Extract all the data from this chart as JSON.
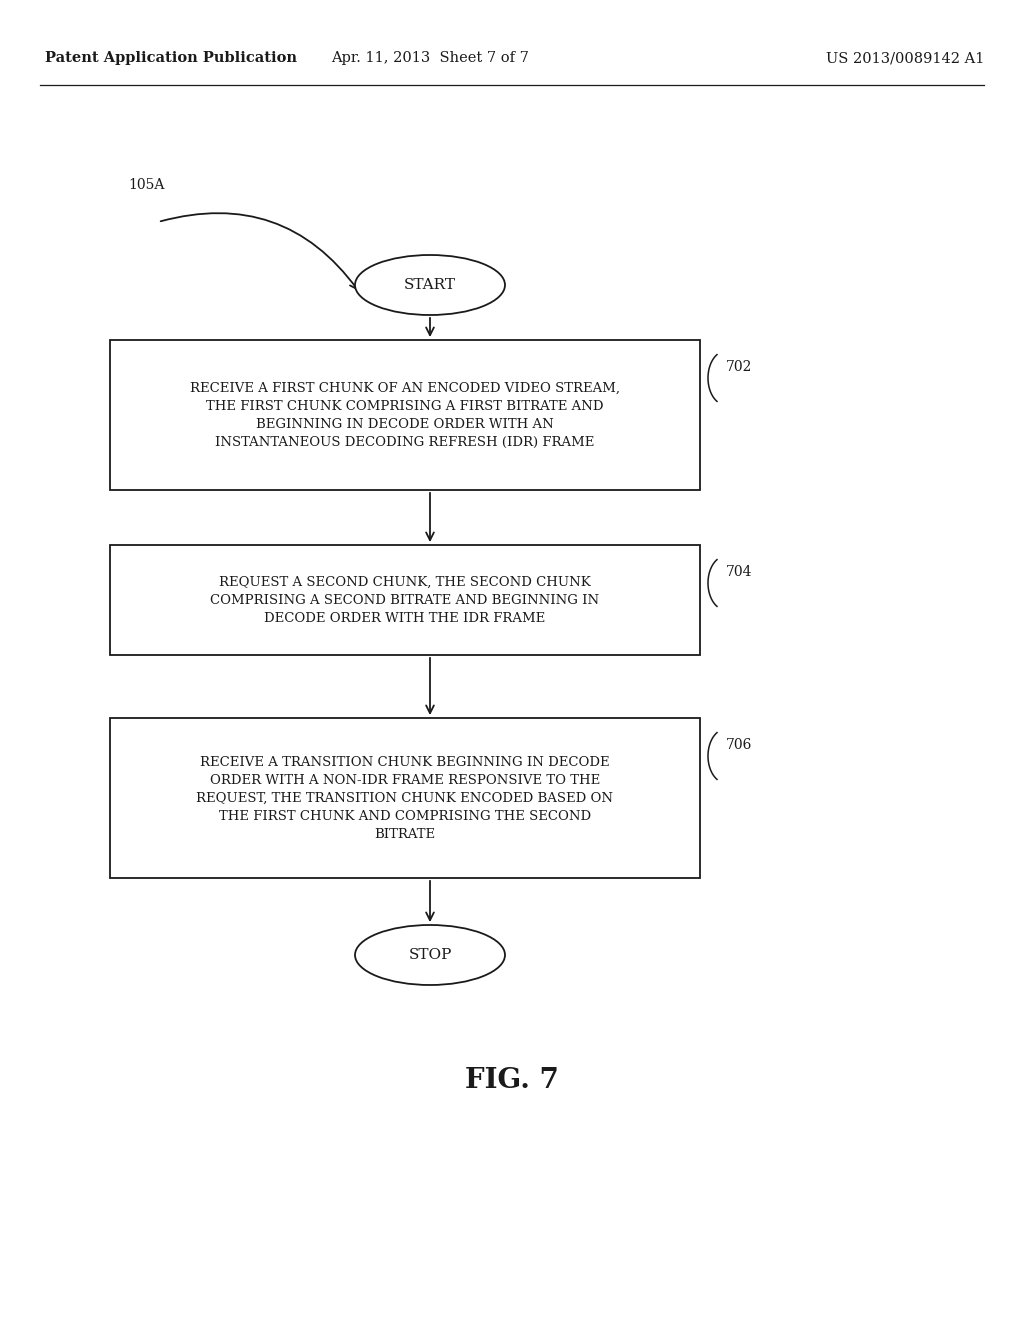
{
  "bg_color": "#ffffff",
  "header_left": "Patent Application Publication",
  "header_center": "Apr. 11, 2013  Sheet 7 of 7",
  "header_right": "US 2013/0089142 A1",
  "label_105A": "105A",
  "start_label": "START",
  "stop_label": "STOP",
  "fig_label": "FIG. 7",
  "box1_text": "RECEIVE A FIRST CHUNK OF AN ENCODED VIDEO STREAM,\nTHE FIRST CHUNK COMPRISING A FIRST BITRATE AND\nBEGINNING IN DECODE ORDER WITH AN\nINSTANTANEOUS DECODING REFRESH (IDR) FRAME",
  "box1_label": "702",
  "box2_text": "REQUEST A SECOND CHUNK, THE SECOND CHUNK\nCOMPRISING A SECOND BITRATE AND BEGINNING IN\nDECODE ORDER WITH THE IDR FRAME",
  "box2_label": "704",
  "box3_text": "RECEIVE A TRANSITION CHUNK BEGINNING IN DECODE\nORDER WITH A NON-IDR FRAME RESPONSIVE TO THE\nREQUEST, THE TRANSITION CHUNK ENCODED BASED ON\nTHE FIRST CHUNK AND COMPRISING THE SECOND\nBITRATE",
  "box3_label": "706",
  "text_color": "#1a1a1a",
  "line_color": "#1a1a1a"
}
